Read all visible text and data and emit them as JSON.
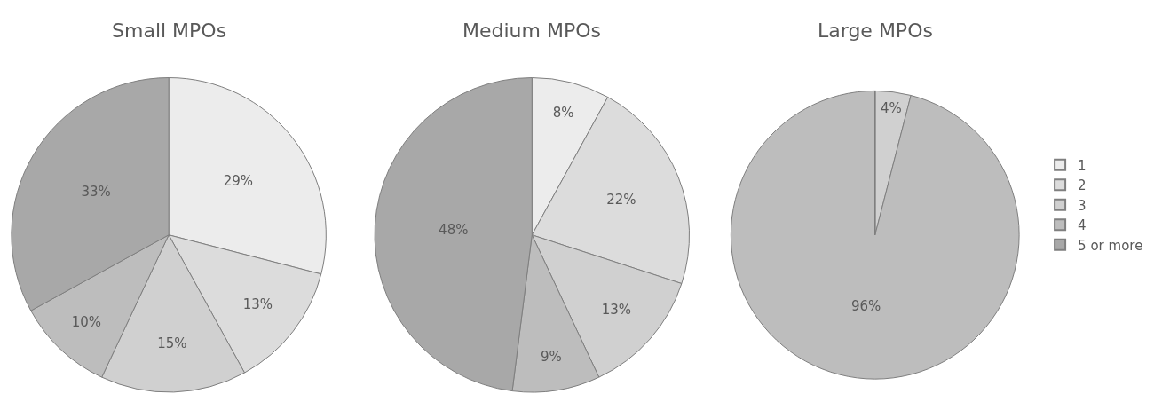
{
  "chart_data": [
    {
      "type": "pie",
      "title": "Small MPOs",
      "categories": [
        null,
        null,
        null,
        null,
        null
      ],
      "values": [
        29,
        13,
        15,
        10,
        33
      ],
      "value_labels": [
        "29%",
        "13%",
        "15%",
        "10%",
        "33%"
      ],
      "colors": [
        "#ececec",
        "#dcdcdc",
        "#d0d0d0",
        "#bdbdbd",
        "#a8a8a8"
      ]
    },
    {
      "type": "pie",
      "title": "Medium MPOs",
      "categories": [
        null,
        null,
        null,
        null,
        null
      ],
      "values": [
        8,
        22,
        13,
        9,
        48
      ],
      "value_labels": [
        "8%",
        "22%",
        "13%",
        "9%",
        "48%"
      ],
      "colors": [
        "#ececec",
        "#dcdcdc",
        "#d0d0d0",
        "#bdbdbd",
        "#a8a8a8"
      ]
    },
    {
      "type": "pie",
      "title": "Large MPOs",
      "categories": [
        "1",
        "2",
        "3",
        "4",
        "5 or more"
      ],
      "values": [
        0,
        0,
        4,
        96,
        0
      ],
      "value_labels": [
        null,
        null,
        "4%",
        "96%",
        null
      ],
      "colors": [
        "#ececec",
        "#dcdcdc",
        "#d0d0d0",
        "#bdbdbd",
        "#a8a8a8"
      ],
      "legend": "right"
    }
  ]
}
